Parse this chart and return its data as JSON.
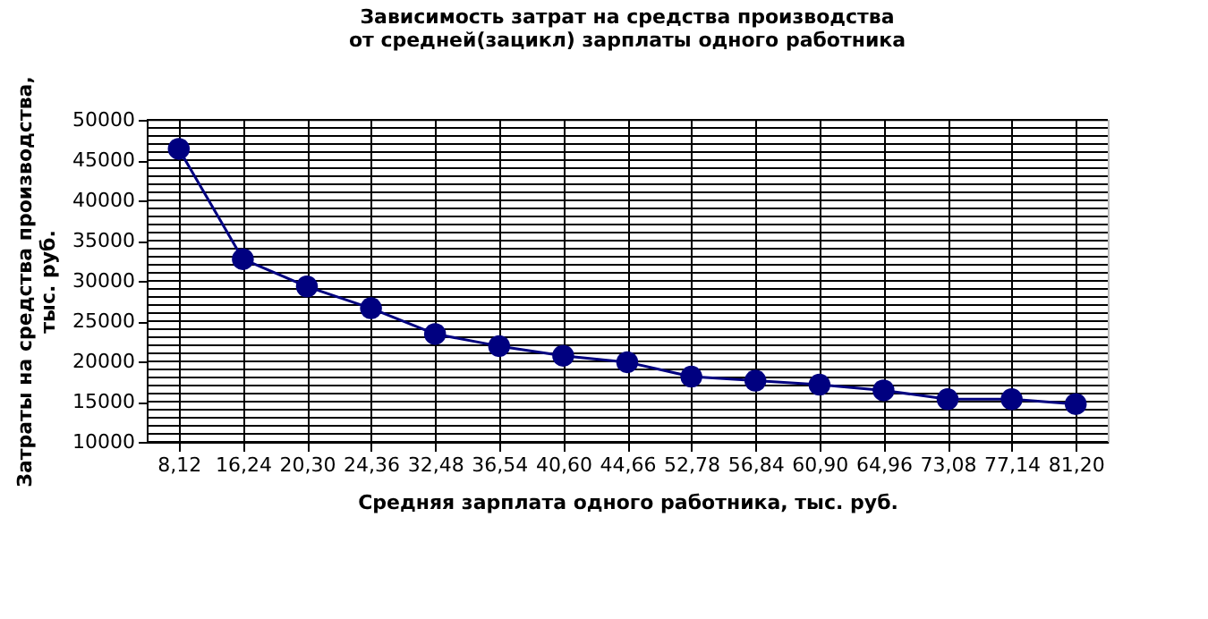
{
  "chart_data": {
    "type": "line",
    "title": "Зависимость затрат на средства производства\nот средней(зацикл) зарплаты одного работника",
    "xlabel": "Средняя зарплата одного работника, тыс. руб.",
    "ylabel": "Затраты на средства производства,\nтыс. руб.",
    "categories": [
      "8,12",
      "16,24",
      "20,30",
      "24,36",
      "32,48",
      "36,54",
      "40,60",
      "44,66",
      "52,78",
      "56,84",
      "60,90",
      "64,96",
      "73,08",
      "77,14",
      "81,20"
    ],
    "series": [
      {
        "color": "#000080",
        "values": [
          46400,
          32700,
          29300,
          26600,
          23400,
          21900,
          20700,
          19900,
          18100,
          17600,
          17100,
          16400,
          15300,
          15300,
          14700
        ]
      }
    ],
    "ylim": [
      10000,
      50000
    ],
    "yticks": [
      10000,
      15000,
      20000,
      25000,
      30000,
      35000,
      40000,
      45000,
      50000
    ],
    "grid": true,
    "marker": "circle",
    "legend": false
  }
}
